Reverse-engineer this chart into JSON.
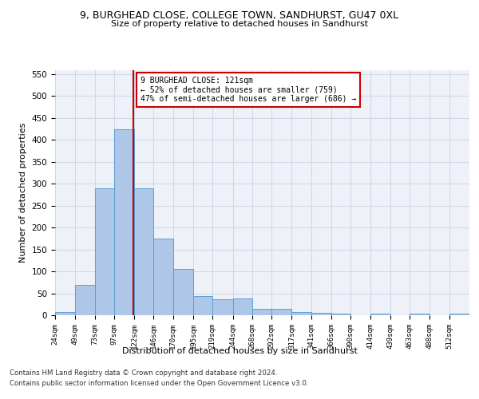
{
  "title1": "9, BURGHEAD CLOSE, COLLEGE TOWN, SANDHURST, GU47 0XL",
  "title2": "Size of property relative to detached houses in Sandhurst",
  "xlabel": "Distribution of detached houses by size in Sandhurst",
  "ylabel": "Number of detached properties",
  "bin_labels": [
    "24sqm",
    "49sqm",
    "73sqm",
    "97sqm",
    "122sqm",
    "146sqm",
    "170sqm",
    "195sqm",
    "219sqm",
    "244sqm",
    "268sqm",
    "292sqm",
    "317sqm",
    "341sqm",
    "366sqm",
    "390sqm",
    "414sqm",
    "439sqm",
    "463sqm",
    "488sqm",
    "512sqm"
  ],
  "bar_values": [
    8,
    70,
    290,
    425,
    290,
    175,
    105,
    43,
    37,
    38,
    15,
    15,
    8,
    5,
    4,
    0,
    4,
    0,
    4,
    0,
    3
  ],
  "bin_edges": [
    24,
    49,
    73,
    97,
    122,
    146,
    170,
    195,
    219,
    244,
    268,
    292,
    317,
    341,
    366,
    390,
    414,
    439,
    463,
    488,
    512,
    537
  ],
  "bar_color": "#aec6e8",
  "bar_edge_color": "#5a9fd4",
  "vline_x": 121,
  "vline_color": "#cc0000",
  "ann_line1": "9 BURGHEAD CLOSE: 121sqm",
  "ann_line2": "← 52% of detached houses are smaller (759)",
  "ann_line3": "47% of semi-detached houses are larger (686) →",
  "ylim": [
    0,
    560
  ],
  "yticks": [
    0,
    50,
    100,
    150,
    200,
    250,
    300,
    350,
    400,
    450,
    500,
    550
  ],
  "grid_color": "#d0d8e8",
  "bg_color": "#eef2f8",
  "footer1": "Contains HM Land Registry data © Crown copyright and database right 2024.",
  "footer2": "Contains public sector information licensed under the Open Government Licence v3.0."
}
